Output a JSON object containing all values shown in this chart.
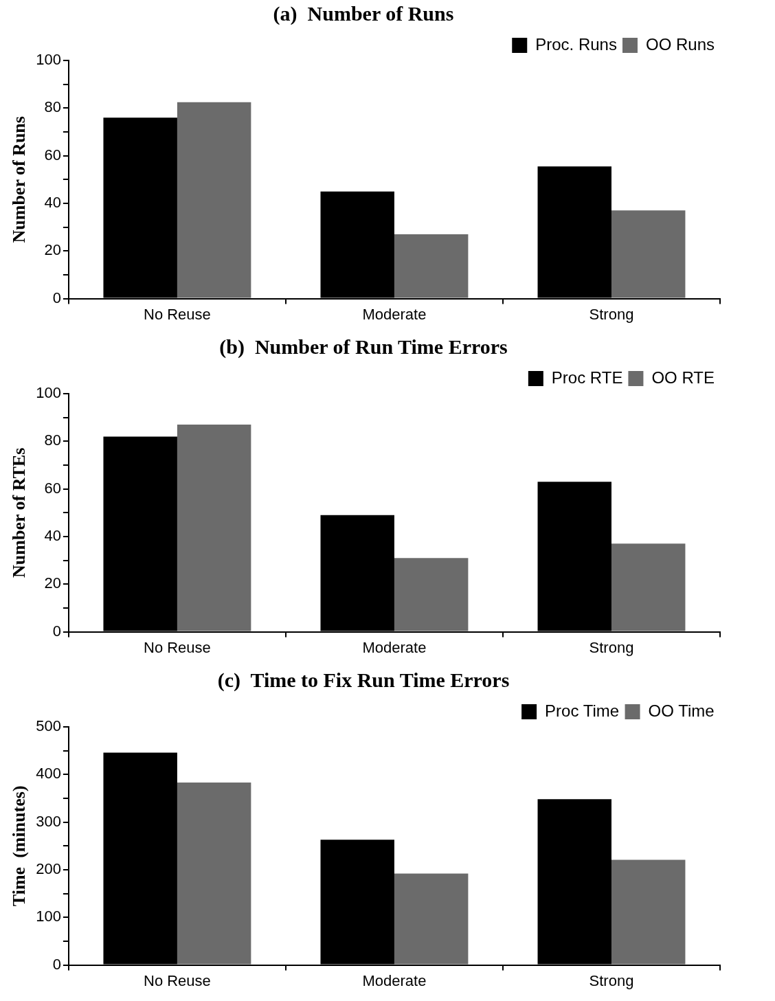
{
  "chart_data": [
    {
      "type": "bar",
      "title": "(a)  Number of Runs",
      "ylabel": "Number of Runs",
      "categories": [
        "No Reuse",
        "Moderate",
        "Strong"
      ],
      "series": [
        {
          "name": "Proc. Runs",
          "color": "#000000",
          "values": [
            76,
            45,
            55.5
          ]
        },
        {
          "name": "OO Runs",
          "color": "#6b6b6b",
          "values": [
            82.5,
            27,
            37
          ]
        }
      ],
      "ylim": [
        0,
        100
      ],
      "yticks": [
        0,
        {
          "value": 10,
          "label": null
        },
        20,
        {
          "value": 30,
          "label": null
        },
        40,
        {
          "value": 50,
          "label": null
        },
        60,
        {
          "value": 70,
          "label": null
        },
        80,
        {
          "value": 90,
          "label": null
        },
        100
      ],
      "legend": "top right",
      "grid": false
    },
    {
      "type": "bar",
      "title": "(b)  Number of Run Time Errors",
      "ylabel": "Number of RTEs",
      "categories": [
        "No Reuse",
        "Moderate",
        "Strong"
      ],
      "series": [
        {
          "name": "Proc RTE",
          "color": "#000000",
          "values": [
            82,
            49,
            63
          ]
        },
        {
          "name": "OO RTE",
          "color": "#6b6b6b",
          "values": [
            87,
            31,
            37
          ]
        }
      ],
      "ylim": [
        0,
        100
      ],
      "yticks": [
        0,
        {
          "value": 10,
          "label": null
        },
        20,
        {
          "value": 30,
          "label": null
        },
        40,
        {
          "value": 50,
          "label": null
        },
        60,
        {
          "value": 70,
          "label": null
        },
        80,
        {
          "value": 90,
          "label": null
        },
        100
      ],
      "legend": "top right",
      "grid": false
    },
    {
      "type": "bar",
      "title": "(c)  Time to Fix Run Time Errors",
      "ylabel": "Time  (minutes)",
      "categories": [
        "No Reuse",
        "Moderate",
        "Strong"
      ],
      "series": [
        {
          "name": "Proc Time",
          "color": "#000000",
          "values": [
            446,
            263,
            348
          ]
        },
        {
          "name": "OO Time",
          "color": "#6b6b6b",
          "values": [
            383,
            192,
            221
          ]
        }
      ],
      "ylim": [
        0,
        500
      ],
      "yticks": [
        0,
        {
          "value": 50,
          "label": null
        },
        100,
        {
          "value": 150,
          "label": null
        },
        200,
        {
          "value": 250,
          "label": null
        },
        300,
        {
          "value": 350,
          "label": null
        },
        400,
        {
          "value": 450,
          "label": null
        },
        500
      ],
      "legend": "top right",
      "grid": false
    }
  ]
}
